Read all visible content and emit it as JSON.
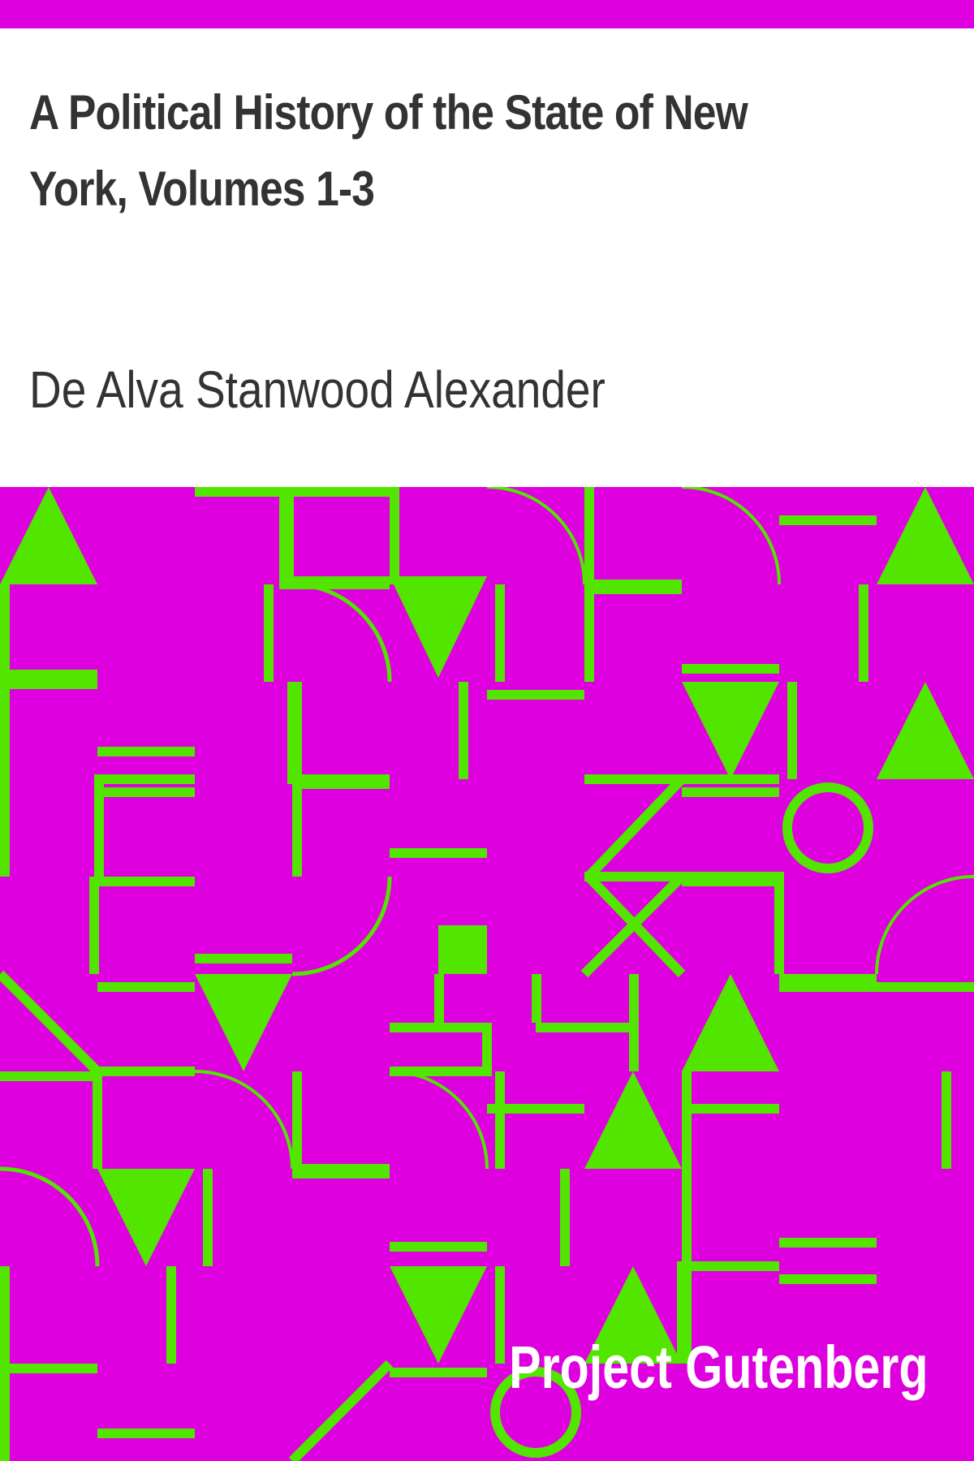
{
  "cover": {
    "title": "A Political History of the State of New York, Volumes 1-3",
    "author": "De Alva Stanwood Alexander",
    "publisher": "Project Gutenberg"
  },
  "colors": {
    "background": "#ffffff",
    "band": "#de00de",
    "pattern_shape": "#52e500",
    "text": "#333333",
    "publisher_text": "#ffffff"
  },
  "decoration": {
    "pattern_icon": "geometric-tile-pattern-icon"
  }
}
